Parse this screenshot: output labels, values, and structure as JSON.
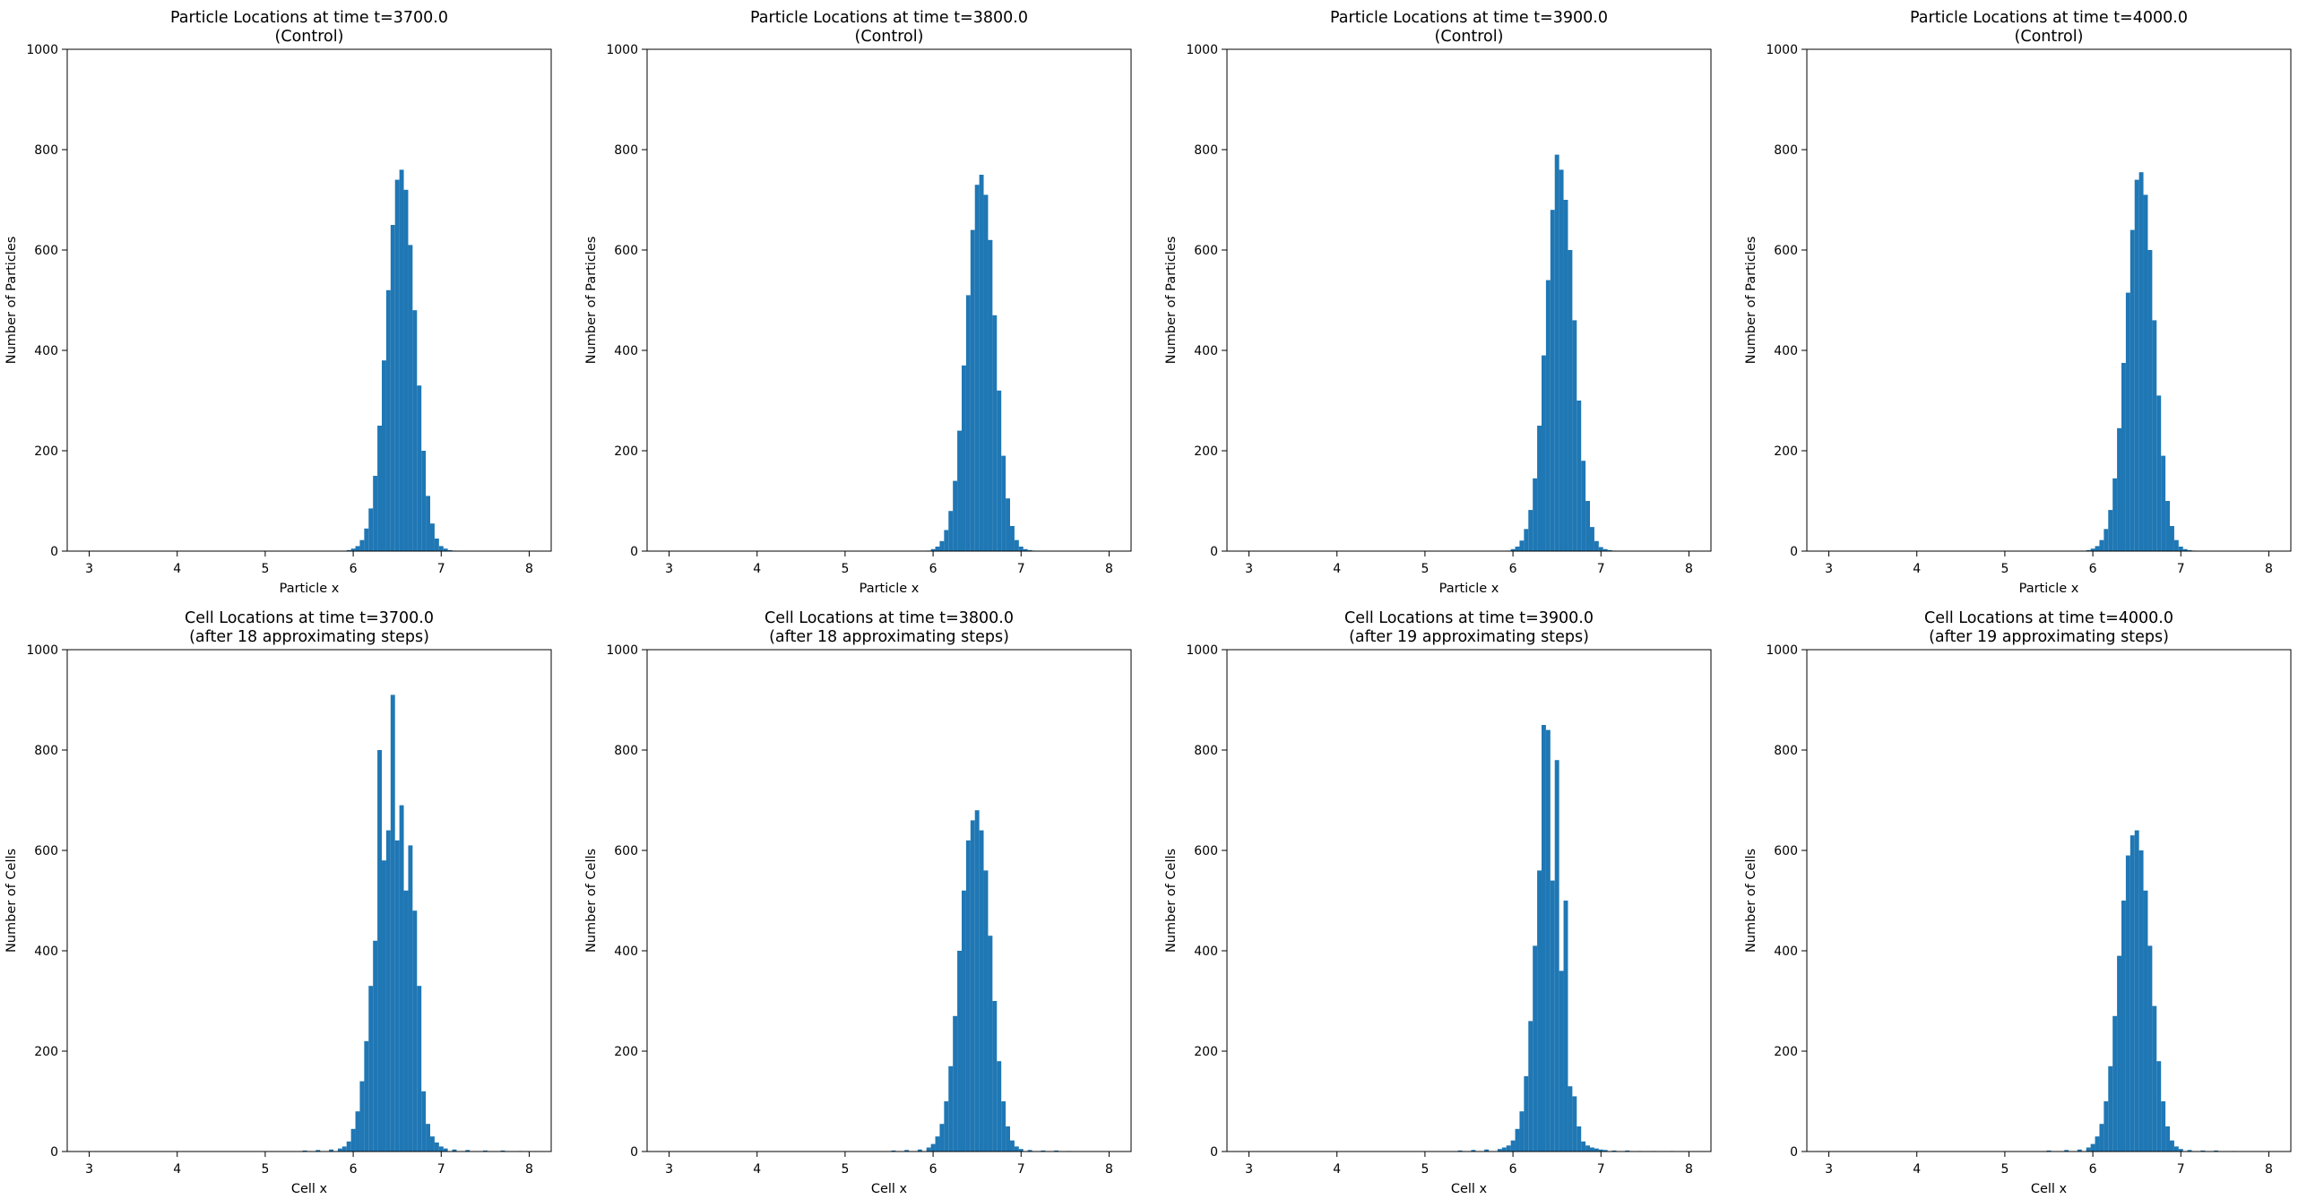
{
  "figure": {
    "bar_color": "#1f77b4",
    "background": "#ffffff"
  },
  "chart_data": [
    {
      "type": "bar",
      "title": "Particle Locations at time t=3700.0",
      "subtitle": "(Control)",
      "xlabel": "Particle x",
      "ylabel": "Number of Particles",
      "xlim": [
        2.75,
        8.25
      ],
      "ylim": [
        0,
        1000
      ],
      "xticks": [
        "3",
        "4",
        "5",
        "6",
        "7",
        "8"
      ],
      "yticks": [
        "0",
        "200",
        "400",
        "600",
        "800",
        "1000"
      ],
      "grid": false,
      "x": [
        5.95,
        6.0,
        6.05,
        6.1,
        6.15,
        6.2,
        6.25,
        6.3,
        6.35,
        6.4,
        6.45,
        6.5,
        6.55,
        6.6,
        6.65,
        6.7,
        6.75,
        6.8,
        6.85,
        6.9,
        6.95,
        7.0,
        7.05,
        7.1,
        7.15
      ],
      "values": [
        2,
        5,
        10,
        22,
        45,
        85,
        150,
        250,
        380,
        520,
        650,
        740,
        760,
        720,
        610,
        480,
        330,
        200,
        110,
        55,
        25,
        10,
        5,
        2,
        1
      ]
    },
    {
      "type": "bar",
      "title": "Particle Locations at time t=3800.0",
      "subtitle": "(Control)",
      "xlabel": "Particle x",
      "ylabel": "Number of Particles",
      "xlim": [
        2.75,
        8.25
      ],
      "ylim": [
        0,
        1000
      ],
      "xticks": [
        "3",
        "4",
        "5",
        "6",
        "7",
        "8"
      ],
      "yticks": [
        "0",
        "200",
        "400",
        "600",
        "800",
        "1000"
      ],
      "grid": false,
      "x": [
        5.95,
        6.0,
        6.05,
        6.1,
        6.15,
        6.2,
        6.25,
        6.3,
        6.35,
        6.4,
        6.45,
        6.5,
        6.55,
        6.6,
        6.65,
        6.7,
        6.75,
        6.8,
        6.85,
        6.9,
        6.95,
        7.0,
        7.05,
        7.1,
        7.15
      ],
      "values": [
        1,
        4,
        9,
        20,
        42,
        80,
        140,
        240,
        370,
        510,
        640,
        730,
        750,
        710,
        620,
        470,
        320,
        190,
        105,
        50,
        22,
        9,
        4,
        2,
        1
      ]
    },
    {
      "type": "bar",
      "title": "Particle Locations at time t=3900.0",
      "subtitle": "(Control)",
      "xlabel": "Particle x",
      "ylabel": "Number of Particles",
      "xlim": [
        2.75,
        8.25
      ],
      "ylim": [
        0,
        1000
      ],
      "xticks": [
        "3",
        "4",
        "5",
        "6",
        "7",
        "8"
      ],
      "yticks": [
        "0",
        "200",
        "400",
        "600",
        "800",
        "1000"
      ],
      "grid": false,
      "x": [
        5.95,
        6.0,
        6.05,
        6.1,
        6.15,
        6.2,
        6.25,
        6.3,
        6.35,
        6.4,
        6.45,
        6.5,
        6.55,
        6.6,
        6.65,
        6.7,
        6.75,
        6.8,
        6.85,
        6.9,
        6.95,
        7.0,
        7.05,
        7.1,
        7.15
      ],
      "values": [
        1,
        4,
        9,
        21,
        44,
        82,
        145,
        250,
        390,
        540,
        680,
        790,
        760,
        700,
        600,
        460,
        300,
        180,
        100,
        48,
        20,
        8,
        4,
        2,
        1
      ]
    },
    {
      "type": "bar",
      "title": "Particle Locations at time t=4000.0",
      "subtitle": "(Control)",
      "xlabel": "Particle x",
      "ylabel": "Number of Particles",
      "xlim": [
        2.75,
        8.25
      ],
      "ylim": [
        0,
        1000
      ],
      "xticks": [
        "3",
        "4",
        "5",
        "6",
        "7",
        "8"
      ],
      "yticks": [
        "0",
        "200",
        "400",
        "600",
        "800",
        "1000"
      ],
      "grid": false,
      "x": [
        5.95,
        6.0,
        6.05,
        6.1,
        6.15,
        6.2,
        6.25,
        6.3,
        6.35,
        6.4,
        6.45,
        6.5,
        6.55,
        6.6,
        6.65,
        6.7,
        6.75,
        6.8,
        6.85,
        6.9,
        6.95,
        7.0,
        7.05,
        7.1,
        7.15
      ],
      "values": [
        2,
        5,
        10,
        22,
        44,
        82,
        145,
        245,
        375,
        515,
        640,
        740,
        755,
        710,
        600,
        460,
        310,
        190,
        100,
        50,
        22,
        9,
        4,
        2,
        1
      ]
    },
    {
      "type": "bar",
      "title": "Cell Locations at time t=3700.0",
      "subtitle": "(after 18 approximating steps)",
      "xlabel": "Cell x",
      "ylabel": "Number of Cells",
      "xlim": [
        2.75,
        8.25
      ],
      "ylim": [
        0,
        1000
      ],
      "xticks": [
        "3",
        "4",
        "5",
        "6",
        "7",
        "8"
      ],
      "yticks": [
        "0",
        "200",
        "400",
        "600",
        "800",
        "1000"
      ],
      "grid": false,
      "x": [
        5.45,
        5.6,
        5.75,
        5.85,
        5.9,
        5.95,
        6.0,
        6.05,
        6.1,
        6.15,
        6.2,
        6.25,
        6.3,
        6.35,
        6.4,
        6.45,
        6.5,
        6.55,
        6.6,
        6.65,
        6.7,
        6.75,
        6.8,
        6.85,
        6.9,
        6.95,
        7.0,
        7.05,
        7.15,
        7.3,
        7.5,
        7.7,
        7.9
      ],
      "values": [
        2,
        3,
        4,
        6,
        10,
        20,
        45,
        80,
        140,
        220,
        330,
        420,
        800,
        580,
        640,
        910,
        620,
        690,
        520,
        610,
        480,
        330,
        120,
        55,
        30,
        18,
        10,
        6,
        4,
        3,
        2,
        2,
        1
      ]
    },
    {
      "type": "bar",
      "title": "Cell Locations at time t=3800.0",
      "subtitle": "(after 18 approximating steps)",
      "xlabel": "Cell x",
      "ylabel": "Number of Cells",
      "xlim": [
        2.75,
        8.25
      ],
      "ylim": [
        0,
        1000
      ],
      "xticks": [
        "3",
        "4",
        "5",
        "6",
        "7",
        "8"
      ],
      "yticks": [
        "0",
        "200",
        "400",
        "600",
        "800",
        "1000"
      ],
      "grid": false,
      "x": [
        5.55,
        5.7,
        5.85,
        5.95,
        6.0,
        6.05,
        6.1,
        6.15,
        6.2,
        6.25,
        6.3,
        6.35,
        6.4,
        6.45,
        6.5,
        6.55,
        6.6,
        6.65,
        6.7,
        6.75,
        6.8,
        6.85,
        6.9,
        6.95,
        7.0,
        7.1,
        7.25,
        7.4,
        7.55
      ],
      "values": [
        2,
        3,
        4,
        8,
        15,
        30,
        55,
        100,
        170,
        270,
        400,
        520,
        620,
        660,
        680,
        640,
        560,
        430,
        300,
        180,
        100,
        50,
        22,
        10,
        5,
        3,
        2,
        2,
        1
      ]
    },
    {
      "type": "bar",
      "title": "Cell Locations at time t=3900.0",
      "subtitle": "(after 19 approximating steps)",
      "xlabel": "Cell x",
      "ylabel": "Number of Cells",
      "xlim": [
        2.75,
        8.25
      ],
      "ylim": [
        0,
        1000
      ],
      "xticks": [
        "3",
        "4",
        "5",
        "6",
        "7",
        "8"
      ],
      "yticks": [
        "0",
        "200",
        "400",
        "600",
        "800",
        "1000"
      ],
      "grid": false,
      "x": [
        5.4,
        5.55,
        5.7,
        5.85,
        5.9,
        5.95,
        6.0,
        6.05,
        6.1,
        6.15,
        6.2,
        6.25,
        6.3,
        6.35,
        6.4,
        6.45,
        6.5,
        6.55,
        6.6,
        6.65,
        6.7,
        6.75,
        6.8,
        6.85,
        6.9,
        6.95,
        7.0,
        7.05,
        7.15,
        7.3,
        7.45,
        7.6,
        7.8
      ],
      "values": [
        2,
        3,
        4,
        5,
        8,
        12,
        22,
        45,
        80,
        150,
        260,
        410,
        560,
        850,
        840,
        540,
        780,
        360,
        500,
        130,
        110,
        50,
        20,
        12,
        8,
        6,
        4,
        3,
        2,
        2,
        1,
        1,
        1
      ]
    },
    {
      "type": "bar",
      "title": "Cell Locations at time t=4000.0",
      "subtitle": "(after 19 approximating steps)",
      "xlabel": "Cell x",
      "ylabel": "Number of Cells",
      "xlim": [
        2.75,
        8.25
      ],
      "ylim": [
        0,
        1000
      ],
      "xticks": [
        "3",
        "4",
        "5",
        "6",
        "7",
        "8"
      ],
      "yticks": [
        "0",
        "200",
        "400",
        "600",
        "800",
        "1000"
      ],
      "grid": false,
      "x": [
        5.5,
        5.7,
        5.85,
        5.95,
        6.0,
        6.05,
        6.1,
        6.15,
        6.2,
        6.25,
        6.3,
        6.35,
        6.4,
        6.45,
        6.5,
        6.55,
        6.6,
        6.65,
        6.7,
        6.75,
        6.8,
        6.85,
        6.9,
        6.95,
        7.0,
        7.1,
        7.25,
        7.4,
        7.6
      ],
      "values": [
        2,
        3,
        4,
        8,
        15,
        30,
        55,
        100,
        170,
        270,
        390,
        500,
        590,
        630,
        640,
        600,
        520,
        410,
        290,
        180,
        100,
        50,
        22,
        10,
        5,
        3,
        2,
        2,
        1
      ]
    }
  ]
}
